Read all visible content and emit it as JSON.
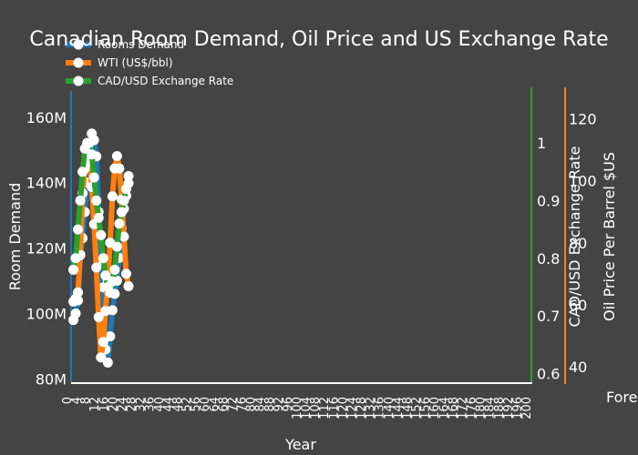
{
  "chart_data": {
    "type": "line",
    "title": "Canadian Room Demand, Oil Price and US Exchange Rate",
    "xlabel": "Year",
    "y1label": "Room Demand",
    "y2label": "CAD/USD Exchange Rate",
    "y3label": "Oil Price Per Barrel $US",
    "annotation": "Fore",
    "y1ticks": [
      "80M",
      "100M",
      "120M",
      "140M",
      "160M"
    ],
    "y2ticks": [
      "0.6",
      "0.7",
      "0.8",
      "0.9",
      "1"
    ],
    "y3ticks": [
      "40",
      "60",
      "80",
      "100",
      "120"
    ],
    "y1lim": [
      79000000,
      168000000
    ],
    "y2lim": [
      0.585,
      1.09
    ],
    "y3lim": [
      35,
      129
    ],
    "x": [
      1,
      2,
      3,
      4,
      5,
      6,
      7,
      8,
      9,
      10,
      11,
      12,
      13,
      14,
      15,
      16,
      17,
      18,
      19,
      20,
      21,
      22,
      23,
      24,
      25
    ],
    "xlim": [
      0,
      200
    ],
    "series": [
      {
        "name": "Rooms Demand",
        "color": "#1f77b4",
        "axis": "y1",
        "values": [
          98000000,
          100000000,
          104000000,
          118000000,
          123000000,
          131000000,
          140000000,
          148000000,
          155000000,
          153000000,
          148000000,
          131000000,
          116000000,
          108000000,
          89000000,
          85000000,
          93000000,
          101000000,
          106000000,
          110000000,
          117000000,
          126000000,
          132000000,
          136000000,
          142000000
        ]
      },
      {
        "name": "WTI (US$/bbl)",
        "color": "#ff7f0e",
        "axis": "y3",
        "values": [
          61,
          62,
          64,
          76,
          96,
          104,
          106,
          107,
          98,
          86,
          72,
          56,
          43,
          48,
          58,
          68,
          80,
          95,
          104,
          108,
          104,
          94,
          82,
          70,
          66
        ]
      },
      {
        "name": "CAD/USD Exchange Rate",
        "color": "#2ca02c",
        "axis": "y2",
        "values": [
          0.78,
          0.8,
          0.85,
          0.9,
          0.95,
          0.99,
          1.0,
          1.0,
          0.98,
          0.94,
          0.9,
          0.87,
          0.84,
          0.8,
          0.77,
          0.75,
          0.74,
          0.76,
          0.78,
          0.82,
          0.86,
          0.88,
          0.9,
          0.92,
          0.93
        ]
      }
    ]
  }
}
